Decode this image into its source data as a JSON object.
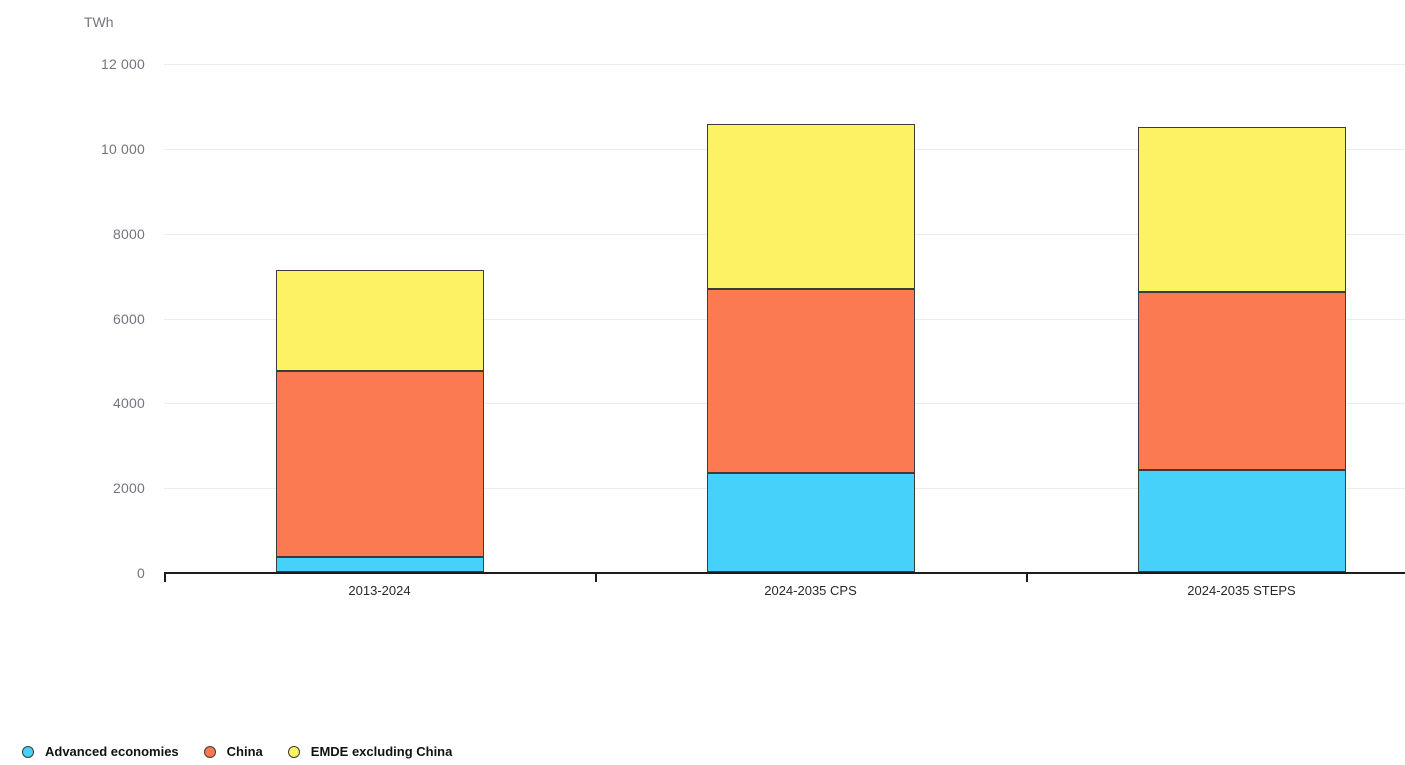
{
  "unit_label": "TWh",
  "chart_data": {
    "type": "bar",
    "stacked": true,
    "title": "",
    "xlabel": "",
    "ylabel": "TWh",
    "unit": "TWh",
    "categories": [
      "2013-2024",
      "2024-2035 CPS",
      "2024-2035 STEPS"
    ],
    "series": [
      {
        "name": "Advanced economies",
        "color": "#45D1FA",
        "values": [
          360,
          2340,
          2400
        ]
      },
      {
        "name": "China",
        "color": "#FC7A51",
        "values": [
          4390,
          4330,
          4200
        ]
      },
      {
        "name": "EMDE excluding China",
        "color": "#FDF263",
        "values": [
          2370,
          3890,
          3890
        ]
      }
    ],
    "stack_order_bottom_to_top": [
      "Advanced economies",
      "China",
      "EMDE excluding China"
    ],
    "ylim": [
      0,
      12000
    ],
    "yticks": [
      {
        "value": 0,
        "label": "0"
      },
      {
        "value": 2000,
        "label": "2000"
      },
      {
        "value": 4000,
        "label": "4000"
      },
      {
        "value": 6000,
        "label": "6000"
      },
      {
        "value": 8000,
        "label": "8000"
      },
      {
        "value": 10000,
        "label": "10 000"
      },
      {
        "value": 12000,
        "label": "12 000"
      }
    ],
    "grid": true,
    "legend_position": "bottom-left",
    "colors": {
      "gridline": "#ececec",
      "axis": "#1c1c1c",
      "bar_border": "#3b3b3b",
      "ytick_text": "#75757e",
      "category_text": "#28282e",
      "legend_text": "#121212",
      "background": "#ffffff"
    }
  }
}
